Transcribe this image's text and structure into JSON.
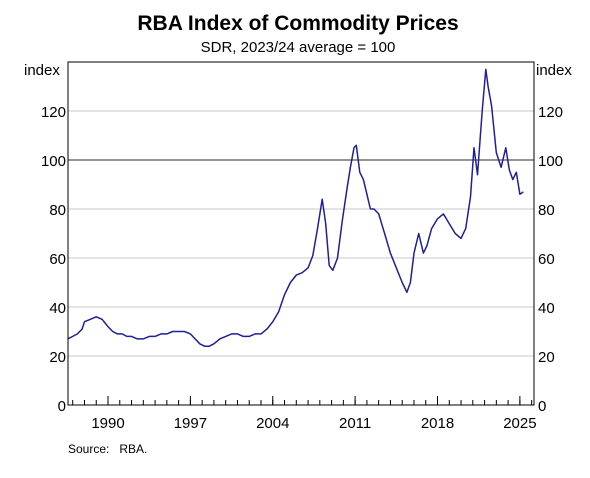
{
  "chart_data": {
    "type": "line",
    "title": "RBA Index of Commodity Prices",
    "subtitle": "SDR, 2023/24 average = 100",
    "ylabel_left": "index",
    "ylabel_right": "index",
    "source": "Source:   RBA.",
    "ylim": [
      0,
      140
    ],
    "yticks": [
      0,
      20,
      40,
      60,
      80,
      100,
      120
    ],
    "xlim": [
      1986.6,
      2026.2
    ],
    "xticks": [
      1990,
      1997,
      2004,
      2011,
      2018,
      2025
    ],
    "xtick_labels": [
      "1990",
      "1997",
      "2004",
      "2011",
      "2018",
      "2025"
    ],
    "reference_line": 100,
    "grid": true,
    "line_color": "#1f1f99",
    "series": [
      {
        "x": [
          1986.6,
          1987.0,
          1987.4,
          1987.8,
          1988.0,
          1988.5,
          1989.0,
          1989.5,
          1990.0,
          1990.4,
          1990.8,
          1991.2,
          1991.6,
          1992.0,
          1992.5,
          1993.0,
          1993.5,
          1994.0,
          1994.5,
          1995.0,
          1995.5,
          1996.0,
          1996.5,
          1997.0,
          1997.4,
          1997.8,
          1998.2,
          1998.6,
          1999.0,
          1999.5,
          2000.0,
          2000.5,
          2001.0,
          2001.5,
          2002.0,
          2002.5,
          2003.0,
          2003.5,
          2004.0,
          2004.5,
          2005.0,
          2005.5,
          2006.0,
          2006.5,
          2007.0,
          2007.4,
          2007.8,
          2008.2,
          2008.5,
          2008.8,
          2009.1,
          2009.5,
          2009.9,
          2010.3,
          2010.6,
          2010.9,
          2011.1,
          2011.4,
          2011.7,
          2012.0,
          2012.3,
          2012.6,
          2013.0,
          2013.5,
          2014.0,
          2014.5,
          2015.0,
          2015.4,
          2015.7,
          2016.0,
          2016.4,
          2016.8,
          2017.1,
          2017.5,
          2018.0,
          2018.5,
          2019.0,
          2019.5,
          2020.0,
          2020.4,
          2020.8,
          2021.1,
          2021.4,
          2021.8,
          2022.1,
          2022.3,
          2022.6,
          2023.0,
          2023.4,
          2023.8,
          2024.1,
          2024.4,
          2024.7,
          2025.0,
          2025.3
        ],
        "y": [
          27,
          28,
          29,
          31,
          34,
          35,
          36,
          35,
          32,
          30,
          29,
          29,
          28,
          28,
          27,
          27,
          28,
          28,
          29,
          29,
          30,
          30,
          30,
          29,
          27,
          25,
          24,
          24,
          25,
          27,
          28,
          29,
          29,
          28,
          28,
          29,
          29,
          31,
          34,
          38,
          45,
          50,
          53,
          54,
          56,
          61,
          72,
          84,
          74,
          57,
          55,
          60,
          75,
          88,
          97,
          105,
          106,
          95,
          92,
          86,
          80,
          80,
          78,
          70,
          62,
          56,
          50,
          46,
          50,
          62,
          70,
          62,
          65,
          72,
          76,
          78,
          74,
          70,
          68,
          72,
          85,
          105,
          94,
          120,
          137,
          130,
          122,
          103,
          97,
          105,
          96,
          92,
          95,
          86,
          87
        ]
      }
    ]
  }
}
